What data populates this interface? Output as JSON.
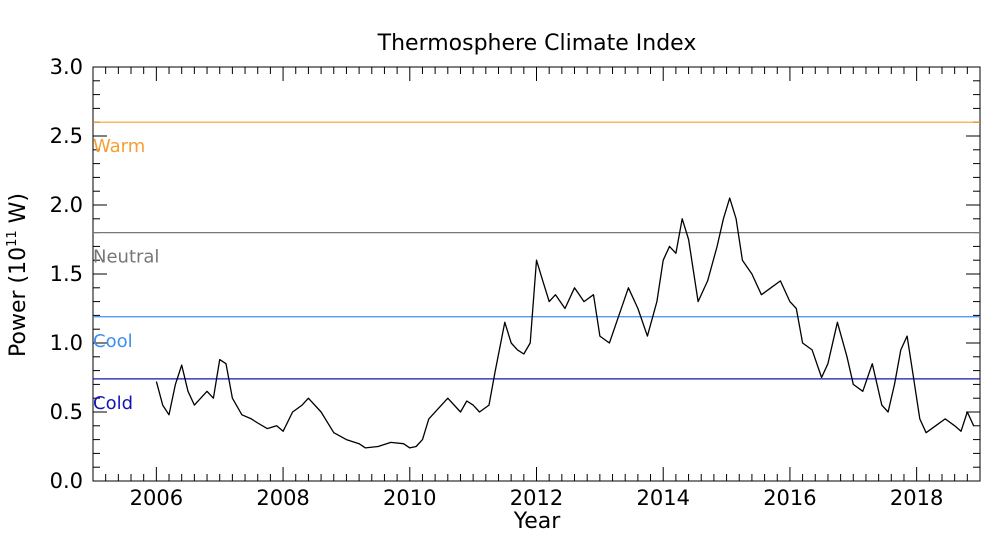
{
  "chart_data": {
    "type": "line",
    "title": "Thermosphere Climate Index",
    "xlabel": "Year",
    "ylabel_main": "Power (10",
    "ylabel_exp": "11",
    "ylabel_unit": " W)",
    "xlim": [
      2005,
      2019
    ],
    "ylim": [
      0.0,
      3.0
    ],
    "x_ticks": [
      2006,
      2008,
      2010,
      2012,
      2014,
      2016,
      2018
    ],
    "x_tick_labels": [
      "2006",
      "2008",
      "2010",
      "2012",
      "2014",
      "2016",
      "2018"
    ],
    "y_ticks": [
      0.0,
      0.5,
      1.0,
      1.5,
      2.0,
      2.5,
      3.0
    ],
    "y_tick_labels": [
      "0.0",
      "0.5",
      "1.0",
      "1.5",
      "2.0",
      "2.5",
      "3.0"
    ],
    "grid": false,
    "levels": [
      {
        "name": "Warm",
        "value": 2.6,
        "color": "#f5a033"
      },
      {
        "name": "Neutral",
        "value": 1.8,
        "color": "#777777"
      },
      {
        "name": "Cool",
        "value": 1.19,
        "color": "#3f8ef0"
      },
      {
        "name": "Cold",
        "value": 0.74,
        "color": "#1414b4"
      }
    ],
    "series": [
      {
        "color": "#000000",
        "x": [
          2006.0,
          2006.1,
          2006.2,
          2006.3,
          2006.4,
          2006.5,
          2006.6,
          2006.7,
          2006.8,
          2006.9,
          2007.0,
          2007.1,
          2007.2,
          2007.35,
          2007.5,
          2007.6,
          2007.75,
          2007.9,
          2008.0,
          2008.15,
          2008.3,
          2008.4,
          2008.6,
          2008.8,
          2009.0,
          2009.2,
          2009.3,
          2009.5,
          2009.7,
          2009.9,
          2010.0,
          2010.1,
          2010.2,
          2010.3,
          2010.5,
          2010.6,
          2010.8,
          2010.9,
          2011.0,
          2011.1,
          2011.25,
          2011.35,
          2011.5,
          2011.6,
          2011.7,
          2011.8,
          2011.9,
          2012.0,
          2012.1,
          2012.2,
          2012.3,
          2012.45,
          2012.6,
          2012.75,
          2012.9,
          2013.0,
          2013.15,
          2013.3,
          2013.45,
          2013.6,
          2013.75,
          2013.9,
          2014.0,
          2014.1,
          2014.2,
          2014.3,
          2014.4,
          2014.55,
          2014.7,
          2014.85,
          2014.95,
          2015.05,
          2015.15,
          2015.25,
          2015.4,
          2015.55,
          2015.7,
          2015.85,
          2016.0,
          2016.1,
          2016.2,
          2016.35,
          2016.5,
          2016.6,
          2016.75,
          2016.9,
          2017.0,
          2017.15,
          2017.3,
          2017.45,
          2017.55,
          2017.65,
          2017.75,
          2017.85,
          2017.95,
          2018.05,
          2018.15,
          2018.3,
          2018.45,
          2018.6,
          2018.7,
          2018.8,
          2018.9
        ],
        "y": [
          0.72,
          0.55,
          0.48,
          0.7,
          0.84,
          0.65,
          0.55,
          0.6,
          0.65,
          0.6,
          0.88,
          0.85,
          0.6,
          0.48,
          0.45,
          0.42,
          0.38,
          0.4,
          0.36,
          0.5,
          0.55,
          0.6,
          0.5,
          0.35,
          0.3,
          0.27,
          0.24,
          0.25,
          0.28,
          0.27,
          0.24,
          0.25,
          0.3,
          0.45,
          0.55,
          0.6,
          0.5,
          0.58,
          0.55,
          0.5,
          0.55,
          0.8,
          1.15,
          1.0,
          0.95,
          0.92,
          1.0,
          1.6,
          1.45,
          1.3,
          1.35,
          1.25,
          1.4,
          1.3,
          1.35,
          1.05,
          1.0,
          1.2,
          1.4,
          1.25,
          1.05,
          1.3,
          1.6,
          1.7,
          1.65,
          1.9,
          1.75,
          1.3,
          1.45,
          1.7,
          1.9,
          2.05,
          1.9,
          1.6,
          1.5,
          1.35,
          1.4,
          1.45,
          1.3,
          1.25,
          1.0,
          0.95,
          0.75,
          0.85,
          1.15,
          0.9,
          0.7,
          0.65,
          0.85,
          0.55,
          0.5,
          0.7,
          0.95,
          1.05,
          0.75,
          0.45,
          0.35,
          0.4,
          0.45,
          0.4,
          0.36,
          0.5,
          0.4
        ]
      }
    ]
  }
}
